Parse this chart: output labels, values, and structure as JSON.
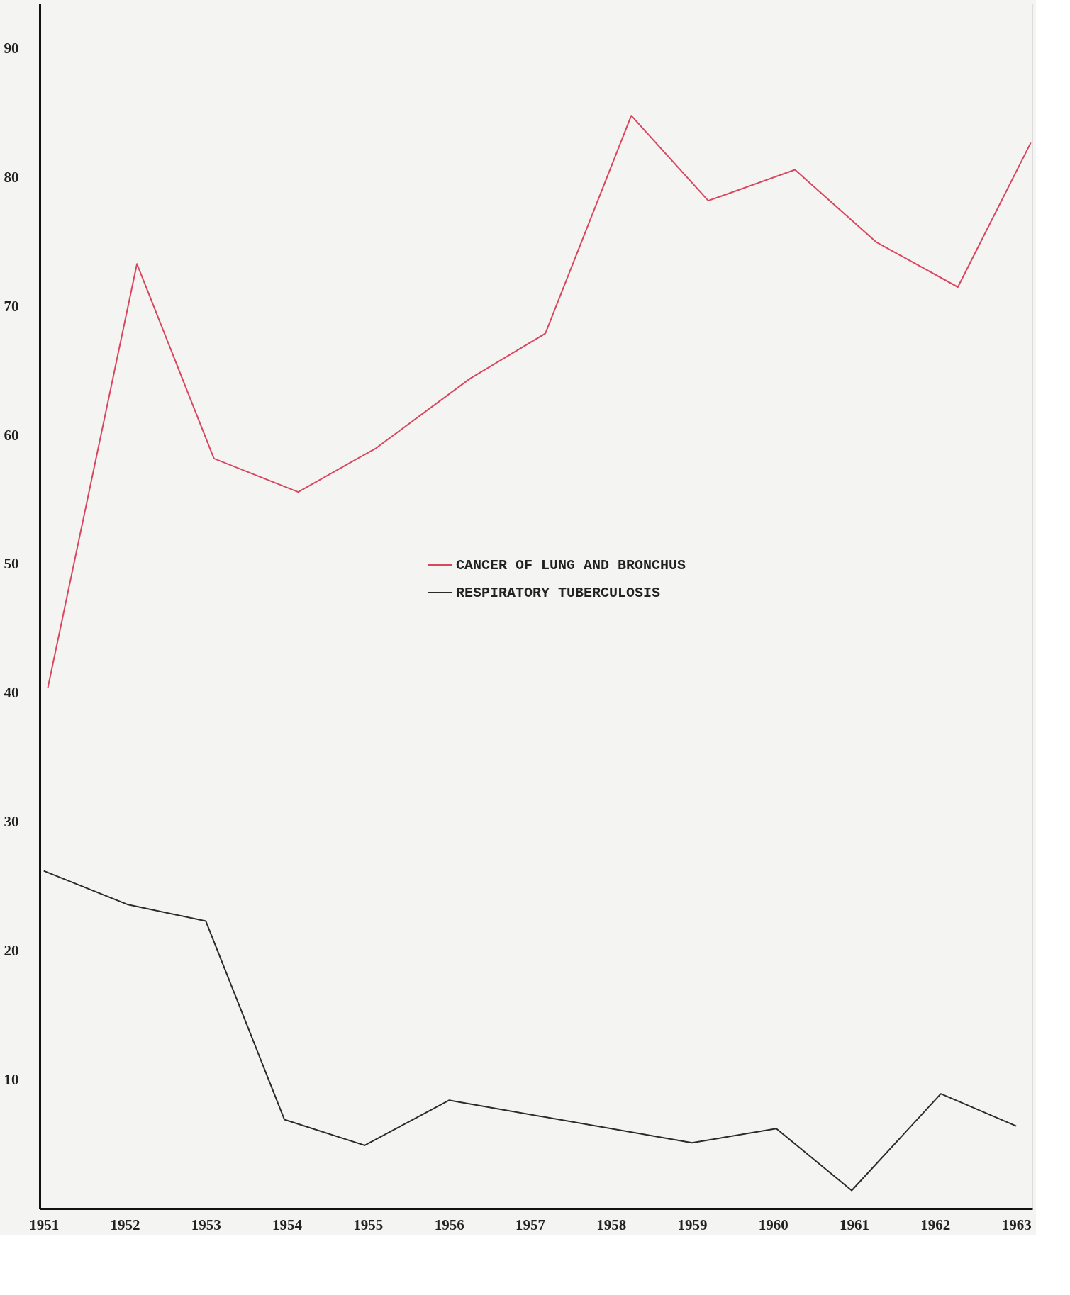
{
  "chart_data": {
    "type": "line",
    "xlim": [
      1950.95,
      1963.2
    ],
    "ylim": [
      0,
      93.5
    ],
    "xticks": [
      1951,
      1952,
      1953,
      1954,
      1955,
      1956,
      1957,
      1958,
      1959,
      1960,
      1961,
      1962,
      1963
    ],
    "yticks": [
      10,
      20,
      30,
      40,
      50,
      60,
      70,
      80,
      90
    ],
    "grid": false,
    "legend": "center right",
    "marker": "none",
    "line_style": "solid",
    "series": [
      {
        "name": "CANCER OF LUNG AND BRONCHUS",
        "color": "#d9475f",
        "x": [
          1951.05,
          1952.15,
          1953.1,
          1954.14,
          1955.1,
          1956.26,
          1957.19,
          1958.25,
          1959.2,
          1960.27,
          1961.27,
          1962.28,
          1963.18
        ],
        "values": [
          40.4,
          73.3,
          58.2,
          55.6,
          59.0,
          64.4,
          67.9,
          84.8,
          78.2,
          80.6,
          75.0,
          71.5,
          82.7
        ]
      },
      {
        "name": "RESPIRATORY TUBERCULOSIS",
        "color": "#2b2b2b",
        "x": [
          1951.0,
          1952.03,
          1953.0,
          1953.97,
          1954.96,
          1956.0,
          1959.0,
          1960.04,
          1960.97,
          1962.07,
          1963.0
        ],
        "values": [
          26.2,
          23.6,
          22.3,
          6.9,
          4.9,
          8.4,
          5.1,
          6.2,
          1.4,
          8.9,
          6.4
        ]
      }
    ]
  }
}
